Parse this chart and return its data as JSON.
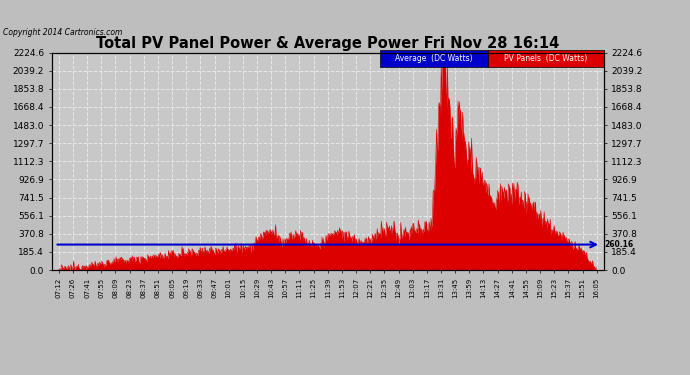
{
  "title": "Total PV Panel Power & Average Power Fri Nov 28 16:14",
  "copyright": "Copyright 2014 Cartronics.com",
  "average_value": 260.16,
  "y_max": 2224.6,
  "yticks": [
    0.0,
    185.4,
    370.8,
    556.1,
    741.5,
    926.9,
    1112.3,
    1297.7,
    1483.0,
    1668.4,
    1853.8,
    2039.2,
    2224.6
  ],
  "background_color": "#bebebe",
  "plot_bg_color": "#c8c8c8",
  "grid_color": "#e8e8e8",
  "bar_color": "#dd0000",
  "avg_line_color": "#0000cc",
  "legend_avg_bg": "#0000cc",
  "legend_pv_bg": "#dd0000",
  "legend_avg_text": "Average  (DC Watts)",
  "legend_pv_text": "PV Panels  (DC Watts)",
  "x_labels": [
    "07:12",
    "07:26",
    "07:41",
    "07:55",
    "08:09",
    "08:23",
    "08:37",
    "08:51",
    "09:05",
    "09:19",
    "09:33",
    "09:47",
    "10:01",
    "10:15",
    "10:29",
    "10:43",
    "10:57",
    "11:11",
    "11:25",
    "11:39",
    "11:53",
    "12:07",
    "12:21",
    "12:35",
    "12:49",
    "13:03",
    "13:17",
    "13:31",
    "13:45",
    "13:59",
    "14:13",
    "14:27",
    "14:41",
    "14:55",
    "15:09",
    "15:23",
    "15:37",
    "15:51",
    "16:05"
  ]
}
